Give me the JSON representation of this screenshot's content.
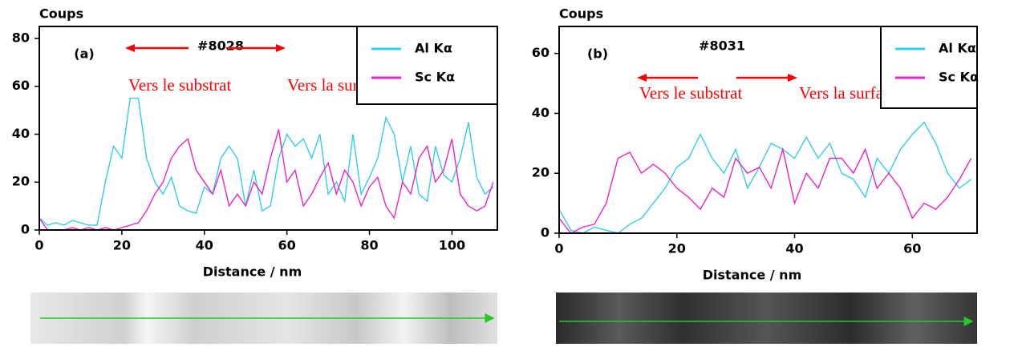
{
  "chart_data": [
    {
      "type": "line",
      "y_label": "Coups",
      "x_label": "Distance / nm",
      "panel_label": "(a)",
      "sample": "#8028",
      "annotations": [
        "Vers le substrat",
        "Vers la surface"
      ],
      "annotation_color": "#ff0000",
      "legend": "upper right",
      "grid": false,
      "xlim": [
        0,
        111
      ],
      "ylim": [
        0,
        85
      ],
      "xticks": [
        0,
        20,
        40,
        60,
        80,
        100
      ],
      "yticks": [
        0,
        20,
        40,
        60,
        80
      ],
      "x": [
        0,
        2,
        4,
        6,
        8,
        10,
        12,
        14,
        16,
        18,
        20,
        22,
        24,
        26,
        28,
        30,
        32,
        34,
        36,
        38,
        40,
        42,
        44,
        46,
        48,
        50,
        52,
        54,
        56,
        58,
        60,
        62,
        64,
        66,
        68,
        70,
        72,
        74,
        76,
        78,
        80,
        82,
        84,
        86,
        88,
        90,
        92,
        94,
        96,
        98,
        100,
        102,
        104,
        106,
        108,
        110
      ],
      "series": [
        {
          "name": "Al Kα",
          "color": "#33ccee",
          "values": [
            5,
            2,
            3,
            2,
            4,
            3,
            2,
            2,
            20,
            35,
            30,
            55,
            55,
            30,
            20,
            15,
            22,
            10,
            8,
            7,
            18,
            15,
            30,
            35,
            30,
            10,
            25,
            8,
            10,
            30,
            40,
            35,
            38,
            30,
            40,
            15,
            20,
            12,
            40,
            15,
            22,
            30,
            47,
            40,
            20,
            35,
            15,
            12,
            35,
            23,
            20,
            30,
            45,
            22,
            15,
            18
          ]
        },
        {
          "name": "Sc Kα",
          "color": "#ee22cc",
          "values": [
            5,
            0,
            0,
            0,
            1,
            0,
            1,
            0,
            1,
            0,
            1,
            2,
            3,
            8,
            15,
            20,
            30,
            35,
            38,
            25,
            20,
            15,
            25,
            10,
            15,
            10,
            20,
            15,
            30,
            42,
            20,
            25,
            10,
            15,
            22,
            28,
            15,
            25,
            20,
            10,
            18,
            22,
            10,
            5,
            20,
            15,
            30,
            35,
            20,
            25,
            38,
            15,
            10,
            8,
            10,
            20
          ]
        }
      ]
    },
    {
      "type": "line",
      "y_label": "Coups",
      "x_label": "Distance / nm",
      "panel_label": "(b)",
      "sample": "#8031",
      "annotations": [
        "Vers le substrat",
        "Vers la surface"
      ],
      "annotation_color": "#ff0000",
      "legend": "upper right",
      "grid": false,
      "xlim": [
        0,
        71
      ],
      "ylim": [
        0,
        69
      ],
      "xticks": [
        0,
        20,
        40,
        60
      ],
      "yticks": [
        0,
        20,
        40,
        60
      ],
      "x": [
        0,
        2,
        4,
        6,
        8,
        10,
        12,
        14,
        16,
        18,
        20,
        22,
        24,
        26,
        28,
        30,
        32,
        34,
        36,
        38,
        40,
        42,
        44,
        46,
        48,
        50,
        52,
        54,
        56,
        58,
        60,
        62,
        64,
        66,
        68,
        70
      ],
      "series": [
        {
          "name": "Al Kα",
          "color": "#33ccee",
          "values": [
            8,
            1,
            0,
            2,
            1,
            0,
            3,
            5,
            10,
            15,
            22,
            25,
            33,
            25,
            20,
            28,
            15,
            22,
            30,
            28,
            25,
            32,
            25,
            30,
            20,
            18,
            12,
            25,
            20,
            28,
            33,
            37,
            30,
            20,
            15,
            18
          ]
        },
        {
          "name": "Sc Kα",
          "color": "#ee22cc",
          "values": [
            5,
            0,
            2,
            3,
            10,
            25,
            27,
            20,
            23,
            20,
            15,
            12,
            8,
            15,
            12,
            25,
            20,
            22,
            15,
            28,
            10,
            20,
            15,
            25,
            25,
            20,
            28,
            15,
            20,
            15,
            5,
            10,
            8,
            12,
            18,
            25
          ]
        }
      ]
    }
  ]
}
